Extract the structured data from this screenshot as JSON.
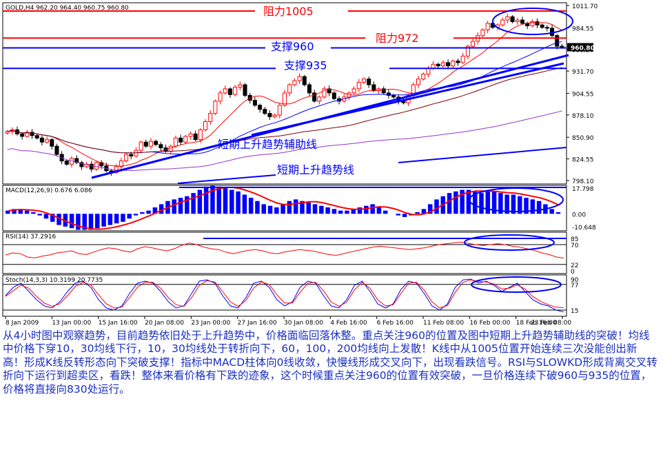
{
  "colors": {
    "background": "#ffffff",
    "grid": "#000000",
    "bull_candle": "#ff0000",
    "bear_candle": "#000000",
    "ma10": "#ff0000",
    "ma30": "#0000ff",
    "ma60": "#800000",
    "ma100": "#8b4513",
    "ma200": "#9932cc",
    "annotation_red": "#ff0000",
    "annotation_blue": "#0000ff",
    "macd_hist": "#0000ff",
    "macd_signal": "#ff0000",
    "rsi_line": "#ff0000",
    "stoch_main": "#0000ff",
    "stoch_signal": "#ff0000",
    "caption_text": "#1a2fc0"
  },
  "chart_data": [
    {
      "type": "candlestick",
      "panel": "price",
      "header": "GOLD,H4  962.20 964.40 960.75 960.80",
      "symbol": "GOLD,H4",
      "ohlc_last": [
        962.2,
        964.4,
        960.75,
        960.8
      ],
      "current_price_label": "960.80",
      "y_ticks": [
        "1011.70",
        "984.55",
        "958.20",
        "931.70",
        "904.55",
        "878.10",
        "850.90",
        "824.55",
        "798.10"
      ],
      "ylim": [
        798.1,
        1011.7
      ],
      "x_ticks": [
        "8 Jan 2009",
        "13 Jan 00:00",
        "15 Jan 16:00",
        "20 Jan 08:00",
        "23 Jan 00:00",
        "27 Jan 16:00",
        "30 Jan 08:00",
        "4 Feb 16:00",
        "6 Feb 16:00",
        "11 Feb 08:00",
        "16 Feb 00:00",
        "18 Feb 16:00",
        "23 Feb 08:00"
      ],
      "close_series": [
        858,
        860,
        855,
        852,
        857,
        853,
        850,
        845,
        848,
        840,
        830,
        822,
        818,
        825,
        820,
        815,
        818,
        812,
        820,
        816,
        810,
        808,
        815,
        822,
        830,
        828,
        835,
        845,
        840,
        846,
        842,
        838,
        834,
        840,
        850,
        845,
        852,
        855,
        848,
        860,
        870,
        880,
        895,
        905,
        910,
        903,
        912,
        915,
        902,
        896,
        890,
        885,
        880,
        876,
        878,
        890,
        905,
        915,
        920,
        925,
        915,
        905,
        895,
        900,
        910,
        905,
        898,
        895,
        900,
        905,
        910,
        918,
        922,
        915,
        908,
        910,
        905,
        902,
        900,
        895,
        893,
        902,
        915,
        922,
        928,
        935,
        940,
        938,
        942,
        938,
        944,
        942,
        950,
        962,
        968,
        975,
        982,
        990,
        985,
        988,
        994,
        998,
        992,
        994,
        990,
        987,
        992,
        988,
        985,
        984,
        975,
        962,
        960.8
      ],
      "annotations": [
        {
          "text": "阻力1005",
          "price": 1005,
          "color": "red"
        },
        {
          "text": "阻力972",
          "price": 972,
          "color": "red"
        },
        {
          "text": "支撑960",
          "price": 960,
          "color": "blue"
        },
        {
          "text": "支撑935",
          "price": 935,
          "color": "blue"
        },
        {
          "text": "短期上升趋势辅助线",
          "color": "blue"
        },
        {
          "text": "短期上升趋势线",
          "color": "blue"
        }
      ]
    },
    {
      "type": "bar",
      "panel": "macd",
      "header": "MACD(12,26,9) 0.676 6.086",
      "y_ticks": [
        "17.798",
        "0.00",
        "-10.648"
      ],
      "ylim": [
        -10.648,
        17.798
      ],
      "histogram": [
        2,
        3,
        3,
        2,
        1,
        -1,
        -3,
        -5,
        -7,
        -8,
        -9,
        -10,
        -10,
        -10,
        -9,
        -8,
        -7,
        -6,
        -5,
        -3,
        -1,
        1,
        2,
        4,
        6,
        8,
        9,
        10,
        11,
        13,
        15,
        17,
        17.5,
        17,
        16,
        15,
        14,
        12,
        10,
        8,
        6,
        5,
        4,
        6,
        8,
        9,
        8,
        7,
        6,
        5,
        4,
        3,
        2,
        2,
        3,
        4,
        5,
        6,
        4,
        2,
        0,
        -1,
        -2,
        -1,
        1,
        3,
        6,
        9,
        11,
        13,
        14,
        15,
        15,
        14,
        13,
        14,
        14,
        13,
        12,
        12,
        11,
        10,
        9,
        8,
        6,
        3,
        1
      ]
    },
    {
      "type": "line",
      "panel": "rsi",
      "header": "RSI(14) 37.2916",
      "y_ticks": [
        "85",
        "70",
        "22",
        "0"
      ],
      "ylim": [
        0,
        100
      ],
      "values": [
        45,
        50,
        48,
        40,
        38,
        42,
        45,
        50,
        52,
        55,
        48,
        46,
        52,
        58,
        62,
        60,
        55,
        52,
        60,
        65,
        62,
        58,
        55,
        60,
        68,
        74,
        70,
        64,
        60,
        58,
        52,
        48,
        52,
        56,
        58,
        55,
        50,
        48,
        52,
        55,
        58,
        56,
        54,
        50,
        46,
        44,
        48,
        52,
        56,
        60,
        64,
        66,
        64,
        62,
        60,
        58,
        60,
        62,
        66,
        70,
        72,
        74,
        76,
        73,
        70,
        68,
        70,
        72,
        70,
        66,
        64,
        60,
        56,
        50,
        46,
        40,
        37.3
      ]
    },
    {
      "type": "line",
      "panel": "stochastic",
      "header": "Stoch(14,3,3) 10.3199 20.7735",
      "y_ticks": [
        "90",
        "77",
        "15"
      ],
      "ylim": [
        0,
        100
      ],
      "main": [
        50,
        70,
        80,
        60,
        40,
        25,
        20,
        35,
        60,
        80,
        85,
        70,
        40,
        20,
        15,
        25,
        55,
        80,
        85,
        80,
        60,
        35,
        20,
        25,
        55,
        85,
        88,
        80,
        50,
        25,
        20,
        45,
        80,
        85,
        70,
        40,
        25,
        35,
        70,
        85,
        80,
        50,
        25,
        20,
        40,
        75,
        85,
        60,
        30,
        20,
        30,
        65,
        85,
        80,
        55,
        25,
        15,
        30,
        70,
        88,
        90,
        80,
        85,
        75,
        60,
        70,
        80,
        60,
        40,
        30,
        25,
        15,
        10.3
      ],
      "signal": [
        48,
        62,
        75,
        68,
        48,
        32,
        24,
        30,
        50,
        72,
        82,
        76,
        52,
        30,
        20,
        22,
        45,
        70,
        82,
        82,
        68,
        45,
        28,
        24,
        45,
        75,
        86,
        83,
        60,
        35,
        24,
        38,
        68,
        83,
        77,
        52,
        32,
        32,
        58,
        80,
        82,
        62,
        35,
        24,
        34,
        64,
        82,
        68,
        40,
        25,
        28,
        55,
        80,
        82,
        63,
        35,
        20,
        26,
        58,
        82,
        88,
        84,
        83,
        78,
        66,
        68,
        76,
        66,
        48,
        36,
        28,
        22,
        20.8
      ]
    }
  ],
  "caption": "从4小时图中观察趋势，目前趋势依旧处于上升趋势中，价格面临回落休整。重点关注960的位置及图中短期上升趋势辅助线的突破！均线中价格下穿10，30均线下行，10，30均线处于转折向下，60，100，200均线向上发散！K线中从1005位置开始连续三次没能创出新高！形成K线反转形态向下突破支撑！指标中MACD柱体向0线收敛，快慢线形成交叉向下，出现看跌信号。RSI与SLOWKD形成背离交叉转折向下运行到超卖区，看跌！整体来看价格有下跌的迹象，这个时候重点关注960的位置有效突破，一旦价格连续下破960与935的位置，价格将直接向830处运行。"
}
